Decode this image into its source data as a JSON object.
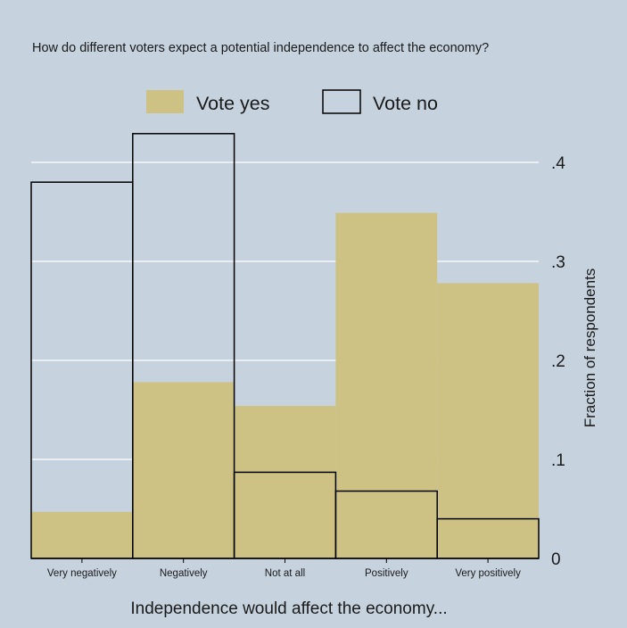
{
  "chart_data": {
    "type": "bar",
    "title": "How do different voters expect a potential independence to affect the economy?",
    "xlabel": "Independence would affect the economy...",
    "ylabel": "Fraction of respondents",
    "categories": [
      "Very negatively",
      "Negatively",
      "Not at all",
      "Positively",
      "Very positively"
    ],
    "series": [
      {
        "name": "Vote yes",
        "values": [
          0.047,
          0.178,
          0.154,
          0.349,
          0.278
        ],
        "style": "filled",
        "color": "#cdc283"
      },
      {
        "name": "Vote no",
        "values": [
          0.38,
          0.429,
          0.087,
          0.068,
          0.04
        ],
        "style": "outline",
        "color": "#000000"
      }
    ],
    "yticks": [
      0,
      0.1,
      0.2,
      0.3,
      0.4
    ],
    "ytick_labels": [
      "0",
      ".1",
      ".2",
      ".3",
      ".4"
    ],
    "ylim": [
      0,
      0.44
    ],
    "y_axis_position": "right",
    "grid": true,
    "legend_position": "top",
    "colors": {
      "background": "#c6d3df",
      "gridline": "#ffffff",
      "axis": "#000000"
    }
  }
}
